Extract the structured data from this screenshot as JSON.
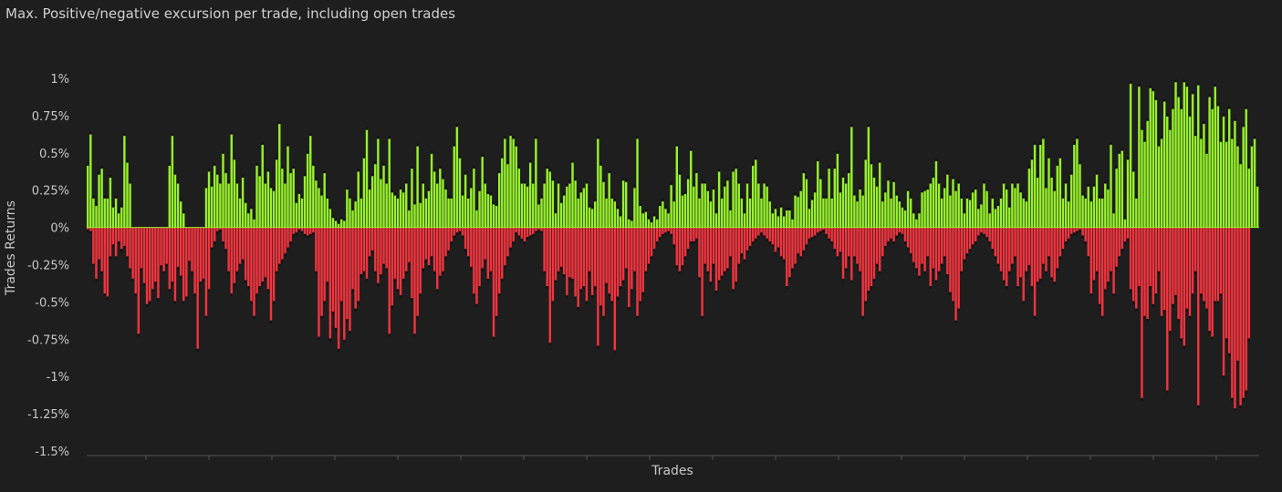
{
  "chart_data": {
    "type": "bar",
    "title": "Max. Positive/negative excursion per trade, including open trades",
    "xlabel": "Trades",
    "ylabel": "Trades Returns",
    "ylim": [
      -1.5,
      1.0
    ],
    "yticks": [
      1,
      0.75,
      0.5,
      0.25,
      0,
      -0.25,
      -0.5,
      -0.75,
      -1,
      -1.25,
      -1.5
    ],
    "ytick_labels": [
      "1%",
      "0.75%",
      "0.5%",
      "0.25%",
      "0%",
      "-0.25%",
      "-0.5%",
      "-0.75%",
      "-1%",
      "-1.25%",
      "-1.5%"
    ],
    "grid": false,
    "colors": {
      "positive": "#97f22b",
      "negative": "#f2343e",
      "marker": "#111111",
      "background": "#1e1e1e",
      "axis": "#555555"
    },
    "series": [
      {
        "values": [
          0.42,
          0.63,
          0.2,
          0.15,
          0.36,
          0.4,
          0.2,
          0.2,
          0.34,
          0.14,
          0.2,
          0.1,
          0.14,
          0.62,
          0.44,
          0.3,
          0,
          0,
          0,
          0,
          0,
          0,
          0,
          0,
          0,
          0,
          0,
          0,
          0,
          0.42,
          0.62,
          0.36,
          0.3,
          0.18,
          0.1,
          0,
          0,
          0,
          0,
          0,
          0,
          0,
          0.27,
          0.38,
          0.28,
          0.42,
          0.36,
          0.3,
          0.5,
          0.37,
          0.3,
          0.63,
          0.46,
          0.3,
          0.2,
          0.34,
          0.17,
          0.1,
          0.13,
          0.06,
          0.42,
          0.35,
          0.56,
          0.3,
          0.38,
          0.27,
          0.25,
          0.46,
          0.7,
          0.4,
          0.3,
          0.55,
          0.37,
          0.4,
          0.17,
          0.23,
          0.2,
          0.35,
          0.5,
          0.62,
          0.42,
          0.32,
          0.27,
          0.22,
          0.37,
          0.2,
          0.13,
          0.07,
          0.05,
          0.03,
          0.06,
          0.05,
          0.26,
          0.2,
          0.12,
          0.18,
          0.38,
          0.2,
          0.47,
          0.66,
          0.26,
          0.35,
          0.43,
          0.6,
          0.33,
          0.42,
          0.3,
          0.6,
          0.24,
          0.22,
          0.2,
          0.26,
          0.24,
          0.3,
          0.12,
          0.4,
          0.16,
          0.55,
          0.17,
          0.3,
          0.2,
          0.25,
          0.5,
          0.38,
          0.3,
          0.4,
          0.33,
          0.26,
          0.2,
          0.2,
          0.55,
          0.68,
          0.47,
          0.22,
          0.36,
          0.2,
          0.27,
          0.4,
          0.12,
          0.25,
          0.48,
          0.3,
          0.23,
          0.22,
          0.16,
          0.15,
          0.37,
          0.47,
          0.6,
          0.43,
          0.62,
          0.6,
          0.55,
          0.4,
          0.3,
          0.3,
          0.28,
          0.44,
          0.3,
          0.6,
          0.16,
          0.2,
          0.3,
          0.4,
          0.38,
          0.32,
          0.1,
          0.3,
          0.17,
          0.22,
          0.28,
          0.3,
          0.44,
          0.32,
          0.2,
          0.24,
          0.27,
          0.3,
          0.14,
          0.13,
          0.18,
          0.6,
          0.42,
          0.31,
          0.2,
          0.37,
          0.2,
          0.18,
          0.13,
          0.08,
          0.32,
          0.31,
          0.06,
          0.05,
          0.27,
          0.6,
          0.15,
          0.1,
          0.11,
          0.06,
          0.04,
          0.08,
          0.06,
          0.15,
          0.18,
          0.13,
          0.1,
          0.29,
          0.18,
          0.55,
          0.36,
          0.22,
          0.23,
          0.33,
          0.52,
          0.28,
          0.37,
          0.2,
          0.3,
          0.3,
          0.25,
          0.18,
          0.26,
          0.1,
          0.38,
          0.2,
          0.28,
          0.32,
          0.12,
          0.38,
          0.4,
          0.3,
          0.2,
          0.1,
          0.3,
          0.2,
          0.42,
          0.46,
          0.3,
          0.2,
          0.3,
          0.28,
          0.18,
          0.1,
          0.13,
          0.08,
          0.14,
          0.08,
          0.12,
          0.12,
          0.06,
          0.22,
          0.21,
          0.25,
          0.37,
          0.33,
          0.13,
          0.19,
          0.24,
          0.45,
          0.33,
          0.2,
          0.2,
          0.4,
          0.2,
          0.4,
          0.5,
          0.24,
          0.34,
          0.3,
          0.37,
          0.68,
          0.22,
          0.18,
          0.26,
          0.22,
          0.46,
          0.68,
          0.43,
          0.34,
          0.28,
          0.44,
          0.18,
          0.24,
          0.32,
          0.2,
          0.31,
          0.22,
          0.18,
          0.14,
          0.12,
          0.25,
          0.2,
          0.1,
          0.06,
          0.1,
          0.24,
          0.25,
          0.26,
          0.3,
          0.34,
          0.45,
          0.3,
          0.2,
          0.27,
          0.36,
          0.22,
          0.33,
          0.25,
          0.3,
          0.2,
          0.1,
          0.2,
          0.19,
          0.24,
          0.26,
          0.13,
          0.16,
          0.3,
          0.25,
          0.1,
          0.2,
          0.13,
          0.15,
          0.2,
          0.3,
          0.26,
          0.14,
          0.3,
          0.27,
          0.3,
          0.24,
          0.2,
          0.18,
          0.4,
          0.46,
          0.56,
          0.34,
          0.56,
          0.6,
          0.27,
          0.47,
          0.34,
          0.25,
          0.42,
          0.47,
          0.2,
          0.3,
          0.18,
          0.36,
          0.56,
          0.6,
          0.43,
          0.22,
          0.2,
          0.28,
          0.18,
          0.28,
          0.36,
          0.2,
          0.2,
          0.3,
          0.26,
          0.56,
          0.1,
          0.4,
          0.5,
          0.52,
          0.06,
          0.46,
          0.97,
          0.38,
          0.2,
          0.95,
          0.66,
          0.58,
          0.72,
          0.94,
          0.92,
          0.86,
          0.55,
          0.6,
          0.85,
          0.75,
          0.66,
          0.8,
          0.98,
          0.88,
          0.8,
          0.98,
          0.95,
          0.75,
          0.9,
          0.62,
          0.96,
          0.6,
          0.7,
          0.5,
          0.88,
          0.8,
          0.95,
          0.82,
          0.58,
          0.75,
          0.58,
          0.8,
          0.6,
          0.72,
          0.55,
          0.43,
          0.68,
          0.8,
          0.4,
          0.55,
          0.6,
          0.28
        ],
        "negative": [
          -0.02,
          -0.03,
          -0.25,
          -0.35,
          -0.22,
          -0.3,
          -0.45,
          -0.47,
          -0.2,
          -0.12,
          -0.2,
          -0.1,
          -0.15,
          -0.13,
          -0.2,
          -0.28,
          -0.35,
          -0.45,
          -0.72,
          -0.28,
          -0.38,
          -0.52,
          -0.5,
          -0.42,
          -0.37,
          -0.48,
          -0.26,
          -0.3,
          -0.25,
          -0.42,
          -0.37,
          -0.5,
          -0.27,
          -0.33,
          -0.5,
          -0.47,
          -0.23,
          -0.3,
          -0.45,
          -0.82,
          -0.37,
          -0.35,
          -0.6,
          -0.42,
          -0.14,
          -0.1,
          -0.03,
          -0.02,
          -0.1,
          -0.15,
          -0.3,
          -0.45,
          -0.38,
          -0.3,
          -0.25,
          -0.22,
          -0.36,
          -0.4,
          -0.5,
          -0.6,
          -0.45,
          -0.4,
          -0.37,
          -0.34,
          -0.42,
          -0.63,
          -0.5,
          -0.3,
          -0.25,
          -0.22,
          -0.18,
          -0.14,
          -0.1,
          -0.05,
          -0.04,
          -0.02,
          -0.03,
          -0.05,
          -0.06,
          -0.05,
          -0.04,
          -0.3,
          -0.74,
          -0.6,
          -0.5,
          -0.37,
          -0.75,
          -0.57,
          -0.68,
          -0.82,
          -0.5,
          -0.76,
          -0.62,
          -0.7,
          -0.42,
          -0.55,
          -0.5,
          -0.32,
          -0.3,
          -0.35,
          -0.2,
          -0.16,
          -0.3,
          -0.38,
          -0.32,
          -0.25,
          -0.28,
          -0.72,
          -0.53,
          -0.35,
          -0.42,
          -0.46,
          -0.35,
          -0.3,
          -0.24,
          -0.48,
          -0.72,
          -0.6,
          -0.45,
          -0.28,
          -0.22,
          -0.26,
          -0.2,
          -0.3,
          -0.42,
          -0.33,
          -0.3,
          -0.2,
          -0.16,
          -0.1,
          -0.06,
          -0.04,
          -0.03,
          -0.06,
          -0.15,
          -0.2,
          -0.27,
          -0.45,
          -0.52,
          -0.4,
          -0.28,
          -0.22,
          -0.35,
          -0.3,
          -0.74,
          -0.6,
          -0.45,
          -0.35,
          -0.26,
          -0.2,
          -0.14,
          -0.1,
          -0.04,
          -0.06,
          -0.08,
          -0.1,
          -0.07,
          -0.06,
          -0.05,
          -0.03,
          -0.02,
          -0.03,
          -0.3,
          -0.4,
          -0.78,
          -0.5,
          -0.36,
          -0.3,
          -0.27,
          -0.32,
          -0.46,
          -0.34,
          -0.35,
          -0.47,
          -0.54,
          -0.42,
          -0.4,
          -0.5,
          -0.3,
          -0.46,
          -0.4,
          -0.8,
          -0.53,
          -0.6,
          -0.38,
          -0.45,
          -0.5,
          -0.83,
          -0.47,
          -0.4,
          -0.36,
          -0.28,
          -0.54,
          -0.42,
          -0.3,
          -0.6,
          -0.5,
          -0.44,
          -0.3,
          -0.25,
          -0.2,
          -0.15,
          -0.1,
          -0.07,
          -0.05,
          -0.04,
          -0.03,
          -0.05,
          -0.12,
          -0.26,
          -0.3,
          -0.26,
          -0.2,
          -0.15,
          -0.1,
          -0.1,
          -0.08,
          -0.34,
          -0.6,
          -0.25,
          -0.3,
          -0.37,
          -0.25,
          -0.43,
          -0.36,
          -0.33,
          -0.3,
          -0.28,
          -0.2,
          -0.42,
          -0.37,
          -0.25,
          -0.18,
          -0.22,
          -0.16,
          -0.13,
          -0.1,
          -0.08,
          -0.06,
          -0.04,
          -0.06,
          -0.08,
          -0.1,
          -0.12,
          -0.17,
          -0.14,
          -0.2,
          -0.22,
          -0.4,
          -0.34,
          -0.28,
          -0.25,
          -0.18,
          -0.2,
          -0.16,
          -0.12,
          -0.08,
          -0.07,
          -0.06,
          -0.04,
          -0.03,
          -0.02,
          -0.05,
          -0.08,
          -0.1,
          -0.15,
          -0.2,
          -0.17,
          -0.35,
          -0.28,
          -0.2,
          -0.36,
          -0.2,
          -0.25,
          -0.3,
          -0.6,
          -0.5,
          -0.43,
          -0.4,
          -0.35,
          -0.25,
          -0.3,
          -0.2,
          -0.13,
          -0.1,
          -0.08,
          -0.1,
          -0.06,
          -0.04,
          -0.05,
          -0.1,
          -0.14,
          -0.18,
          -0.24,
          -0.28,
          -0.33,
          -0.25,
          -0.3,
          -0.2,
          -0.4,
          -0.28,
          -0.36,
          -0.3,
          -0.25,
          -0.2,
          -0.32,
          -0.44,
          -0.5,
          -0.63,
          -0.55,
          -0.3,
          -0.22,
          -0.18,
          -0.15,
          -0.12,
          -0.1,
          -0.06,
          -0.04,
          -0.05,
          -0.07,
          -0.1,
          -0.15,
          -0.2,
          -0.25,
          -0.3,
          -0.36,
          -0.4,
          -0.3,
          -0.25,
          -0.2,
          -0.4,
          -0.34,
          -0.5,
          -0.3,
          -0.26,
          -0.4,
          -0.6,
          -0.37,
          -0.35,
          -0.25,
          -0.3,
          -0.2,
          -0.34,
          -0.37,
          -0.28,
          -0.2,
          -0.15,
          -0.1,
          -0.08,
          -0.05,
          -0.04,
          -0.03,
          -0.02,
          -0.06,
          -0.1,
          -0.2,
          -0.45,
          -0.36,
          -0.3,
          -0.52,
          -0.6,
          -0.42,
          -0.37,
          -0.3,
          -0.45,
          -0.27,
          -0.2,
          -0.15,
          -0.1,
          -0.08,
          -0.42,
          -0.5,
          -0.55,
          -0.4,
          -1.15,
          -0.6,
          -0.62,
          -0.4,
          -0.52,
          -0.45,
          -0.3,
          -0.6,
          -0.56,
          -1.1,
          -0.7,
          -0.52,
          -0.46,
          -0.62,
          -0.75,
          -0.8,
          -0.55,
          -0.6,
          -0.45,
          -0.3,
          -1.2,
          -0.45,
          -0.5,
          -0.55,
          -0.7,
          -0.74,
          -0.5,
          -0.5,
          -0.45,
          -1.0,
          -0.75,
          -0.85,
          -1.15,
          -1.22,
          -0.9,
          -1.2,
          -1.15,
          -1.1,
          -0.75
        ]
      }
    ]
  }
}
